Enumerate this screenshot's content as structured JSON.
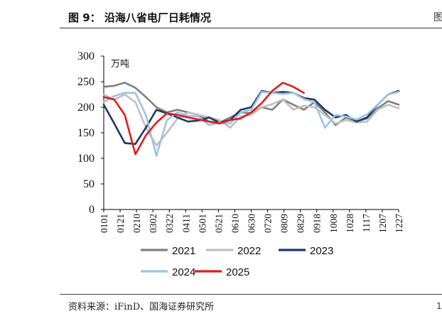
{
  "header": {
    "title": "图 9：   沿海八省电厂日耗情况",
    "edge_glyph": "图"
  },
  "footer": {
    "source": "资料来源：iFinD、国海证券研究所",
    "edge_glyph": "1"
  },
  "chart_data": {
    "type": "line",
    "title": "",
    "xlabel": "",
    "ylabel": "万吨",
    "ylim": [
      0,
      300
    ],
    "yticks": [
      0,
      50,
      100,
      150,
      200,
      250,
      300
    ],
    "grid": false,
    "legend_position": "bottom",
    "x_tick_labels": [
      "0101",
      "0121",
      "0210",
      "0302",
      "0322",
      "0411",
      "0501",
      "0521",
      "0610",
      "0630",
      "0720",
      "0809",
      "0829",
      "0918",
      "1008",
      "1028",
      "1117",
      "1207",
      "1227"
    ],
    "series": [
      {
        "name": "2021",
        "color": "#7f7f7f",
        "values": [
          240,
          242,
          248,
          238,
          220,
          200,
          190,
          195,
          190,
          185,
          172,
          170,
          180,
          190,
          188,
          200,
          195,
          215,
          205,
          195,
          210,
          190,
          165,
          180,
          172,
          178,
          198,
          212,
          205
        ]
      },
      {
        "name": "2022",
        "color": "#bfbfbf",
        "values": [
          225,
          215,
          225,
          210,
          160,
          125,
          150,
          178,
          190,
          185,
          180,
          175,
          160,
          182,
          185,
          200,
          206,
          215,
          195,
          203,
          200,
          185,
          168,
          175,
          170,
          172,
          195,
          205,
          198
        ]
      },
      {
        "name": "2023",
        "color": "#1f3864",
        "values": [
          205,
          168,
          130,
          128,
          160,
          195,
          188,
          180,
          172,
          174,
          180,
          170,
          175,
          195,
          200,
          232,
          228,
          230,
          228,
          218,
          215,
          195,
          180,
          185,
          172,
          180,
          205,
          225,
          232
        ]
      },
      {
        "name": "2024",
        "color": "#9dc3e6",
        "values": [
          210,
          222,
          228,
          228,
          185,
          105,
          175,
          190,
          183,
          182,
          165,
          170,
          168,
          190,
          195,
          230,
          228,
          226,
          228,
          216,
          210,
          160,
          185,
          182,
          176,
          186,
          205,
          225,
          230
        ]
      },
      {
        "name": "2025",
        "color": "#e31a1c",
        "values": [
          220,
          215,
          185,
          108,
          145,
          170,
          188,
          185,
          180,
          176,
          172,
          168,
          175,
          178,
          190,
          208,
          232,
          248,
          240,
          228
        ]
      }
    ]
  }
}
